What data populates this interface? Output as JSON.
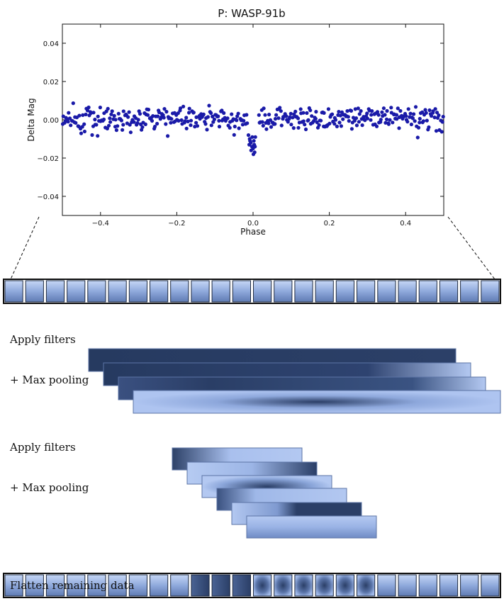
{
  "chart_data": {
    "type": "scatter",
    "title": "P: WASP-91b",
    "xlabel": "Phase",
    "ylabel": "Delta Mag",
    "xlim": [
      -0.5,
      0.5
    ],
    "ylim": [
      -0.05,
      0.05
    ],
    "xticks": [
      -0.4,
      -0.2,
      0.0,
      0.2,
      0.4
    ],
    "xtick_labels": [
      "−0.4",
      "−0.2",
      "0.0",
      "0.2",
      "0.4"
    ],
    "yticks": [
      0.04,
      0.02,
      0.0,
      -0.02,
      -0.04
    ],
    "ytick_labels": [
      "0.04",
      "0.02",
      "0.00",
      "−0.02",
      "−0.04"
    ],
    "grid": false,
    "marker_color": "#1a1aa8",
    "series": [
      {
        "points": [
          [
            -0.012,
            -0.008
          ],
          [
            -0.009,
            -0.01
          ],
          [
            -0.006,
            -0.012
          ],
          [
            -0.003,
            -0.014
          ],
          [
            0.0,
            -0.015
          ],
          [
            0.003,
            -0.013
          ],
          [
            -0.01,
            -0.013
          ],
          [
            -0.005,
            -0.016
          ],
          [
            0.001,
            -0.018
          ],
          [
            0.004,
            -0.017
          ],
          [
            -0.008,
            -0.011
          ],
          [
            0.002,
            -0.011
          ],
          [
            0.006,
            -0.009
          ],
          [
            -0.002,
            -0.009
          ],
          [
            0.005,
            -0.014
          ]
        ]
      }
    ]
  },
  "diagram": {
    "input_cells": 24,
    "flatten_cells": 24,
    "stage1_count": 4,
    "stage2_count": 6,
    "colors": {
      "dark": "#2b3d62",
      "mid": "#5b76a8",
      "light": "#9fb8e8",
      "lighter": "#b8cdf3",
      "border": "#1e2a40"
    },
    "labels": {
      "apply_filters_1": "Apply filters",
      "max_pooling_1": "+ Max pooling",
      "apply_filters_2": "Apply filters",
      "max_pooling_2": "+ Max pooling",
      "flatten": "Flatten remaining data"
    }
  }
}
